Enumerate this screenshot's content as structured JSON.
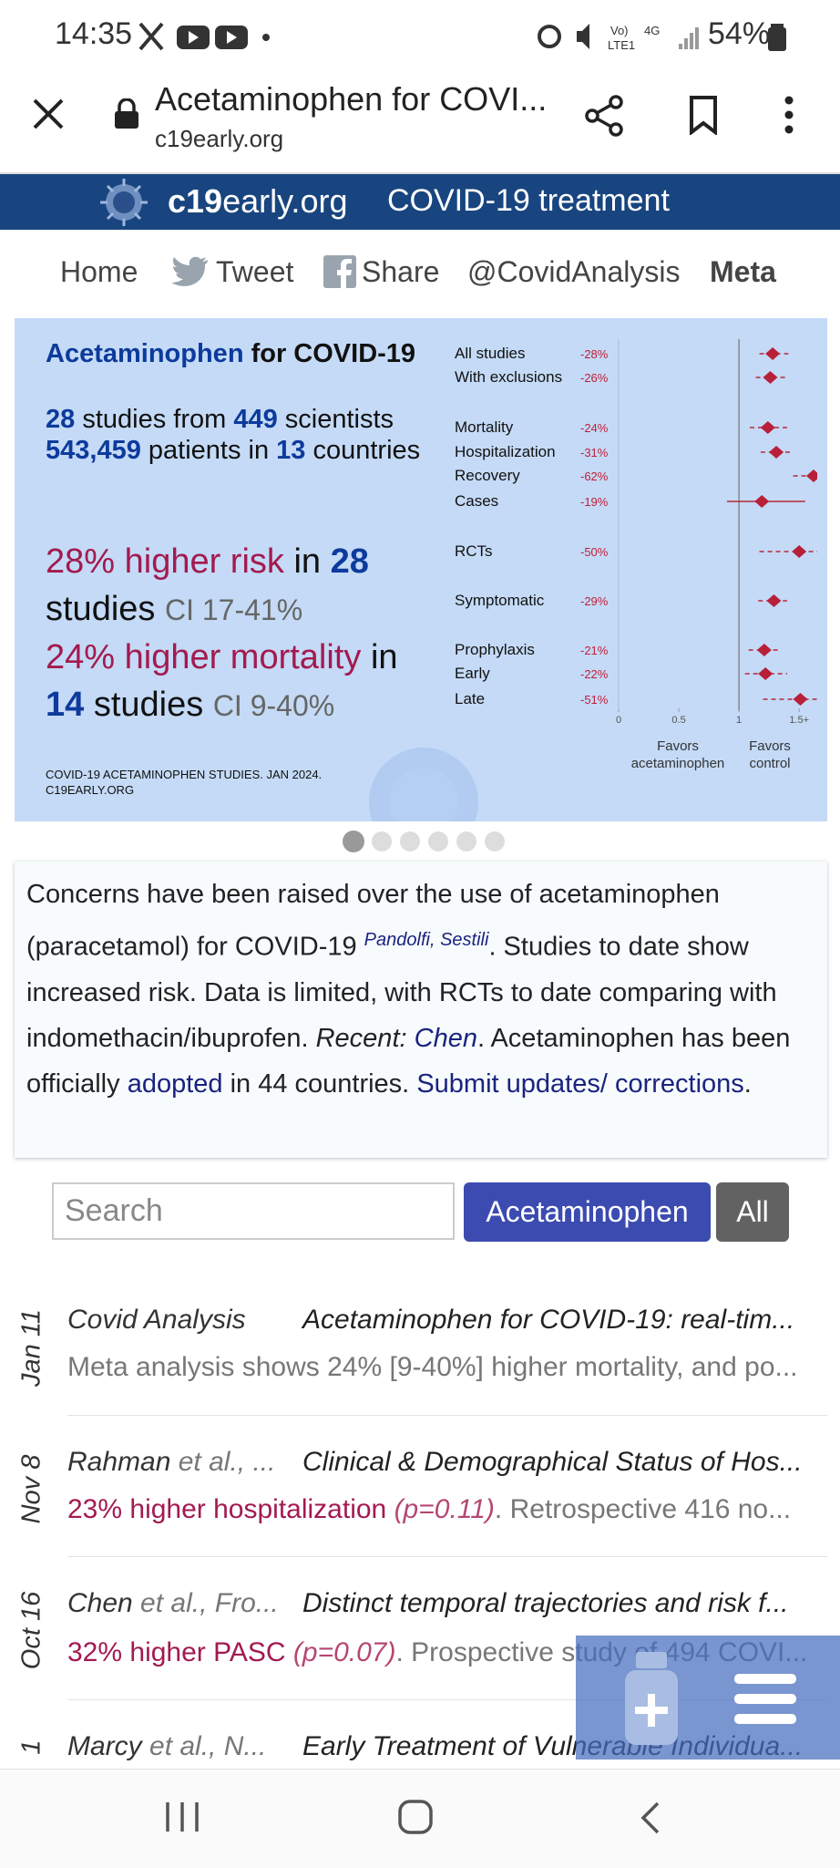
{
  "status_bar": {
    "time": "14:35",
    "battery": "54%"
  },
  "browser": {
    "title": "Acetaminophen for COVI...",
    "url": "c19early.org"
  },
  "site_header": {
    "logo_bold": "c19",
    "logo_rest": "early.org",
    "tagline": "COVID-19 treatment"
  },
  "nav": [
    "Home",
    "Tweet",
    "Share",
    "@CovidAnalysis",
    "Meta"
  ],
  "infographic": {
    "title": "Acetaminophen",
    "title_rest": " for COVID-19",
    "studies": "28",
    "studies_text": " studies from ",
    "scientists": "449",
    "scientists_text": " scientists",
    "patients": "543,459",
    "patients_text": " patients in ",
    "countries": "13",
    "countries_text": " countries",
    "risk": "28% higher risk",
    "risk_in": " in ",
    "risk_studies": "28",
    "risk_studies_text": " studies ",
    "risk_ci": "CI 17-41%",
    "mortality": "24% higher mortality",
    "mortality_in": " in ",
    "mortality_studies": "14",
    "mortality_studies_text": " studies ",
    "mortality_ci": "CI 9-40%",
    "footer": [
      "COVID-19 ACETAMINOPHEN STUDIES. JAN 2024.",
      "C19EARLY.ORG"
    ],
    "forest": {
      "xlim": [
        0,
        1.65
      ],
      "xticks": [
        0,
        0.5,
        1,
        {
          "value": 1.5,
          "label": "1.5+"
        }
      ],
      "favors_left": "Favors acetaminophen",
      "favors_right": "Favors control",
      "rows": [
        {
          "name": "All studies",
          "label": "-28%",
          "rr": 1.28,
          "ci": [
            1.17,
            1.41
          ]
        },
        {
          "name": "With exclusions",
          "label": "-26%",
          "rr": 1.26,
          "ci": [
            1.14,
            1.39
          ]
        },
        {
          "name": "Mortality",
          "label": "-24%",
          "rr": 1.24,
          "ci": [
            1.09,
            1.4
          ]
        },
        {
          "name": "Hospitalization",
          "label": "-31%",
          "rr": 1.31,
          "ci": [
            1.18,
            1.45
          ]
        },
        {
          "name": "Recovery",
          "label": "-62%",
          "rr": 1.62,
          "ci": [
            1.45,
            1.8
          ]
        },
        {
          "name": "Cases",
          "label": "-19%",
          "rr": 1.19,
          "ci": [
            0.9,
            1.55
          ]
        },
        {
          "name": "RCTs",
          "label": "-50%",
          "rr": 1.5,
          "ci": [
            1.17,
            1.9
          ]
        },
        {
          "name": "Symptomatic",
          "label": "-29%",
          "rr": 1.29,
          "ci": [
            1.16,
            1.4
          ]
        },
        {
          "name": "Prophylaxis",
          "label": "-21%",
          "rr": 1.21,
          "ci": [
            1.08,
            1.35
          ]
        },
        {
          "name": "Early",
          "label": "-22%",
          "rr": 1.22,
          "ci": [
            1.05,
            1.4
          ]
        },
        {
          "name": "Late",
          "label": "-51%",
          "rr": 1.51,
          "ci": [
            1.2,
            1.9
          ]
        }
      ]
    }
  },
  "summary": {
    "text1": "Concerns have been raised over the use of acetaminophen (paracetamol) for COVID-19 ",
    "cite1": "Pandolfi",
    "cite_sep": ", ",
    "cite2": "Sestili",
    "text2": ". Studies to date show increased risk. Data is limited, with RCTs to date comparing with indomethacin/ibuprofen. ",
    "recent": "Recent:",
    "recent_link": "Chen",
    "text3": ". Acetaminophen has been officially ",
    "adopted": "adopted",
    "text4": " in 44 countries. ",
    "submit": "Submit updates/ corrections",
    "text5": "."
  },
  "search": {
    "placeholder": "Search",
    "button": "Acetaminophen",
    "all": "All"
  },
  "items": [
    {
      "date": "Jan 11",
      "author": "Covid Analysis",
      "title": "Acetaminophen for COVID-19: real-tim...",
      "summary": "Meta analysis shows 24% [9-40%] higher mortality, and po..."
    },
    {
      "date": "Nov 8",
      "author": "Rahman",
      "author_rest": " et al., ...",
      "title": "Clinical & Demographical Status of Hos...",
      "result": "23% higher hospitalization",
      "p": " (p=0.11)",
      "summary": ". Retrospective 416 no..."
    },
    {
      "date": "Oct 16",
      "author": "Chen",
      "author_rest": " et al., Fro...",
      "title": "Distinct temporal trajectories and risk f...",
      "result": "32% higher PASC",
      "p": " (p=0.07)",
      "summary": ". Prospective study of 494 COVI..."
    },
    {
      "date": "1",
      "author": "Marcy",
      "author_rest": " et al., N...",
      "title": "Early Treatment of Vulnerable Individua..."
    }
  ]
}
